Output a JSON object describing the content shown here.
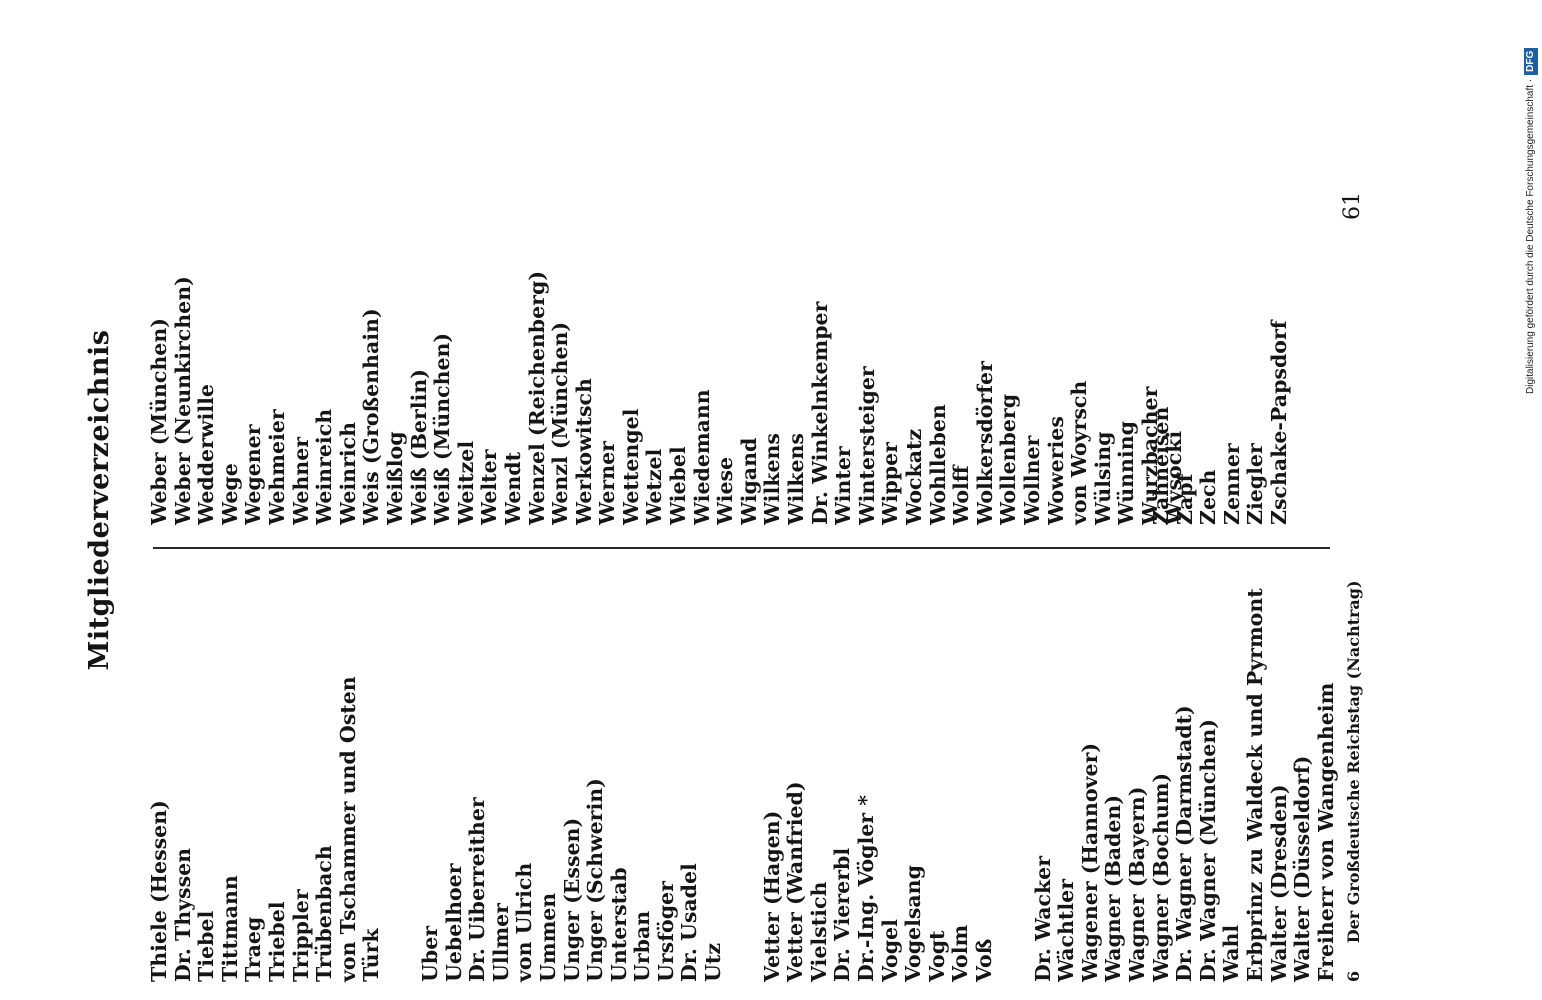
{
  "title": "Mitgliederverzeichnis",
  "left_column": [
    "Thiele (Hessen)",
    "Dr. Thyssen",
    "Tiebel",
    "Tittmann",
    "Traeg",
    "Triebel",
    "Trippler",
    "Trübenbach",
    "von Tschammer und Osten",
    "Türk",
    "",
    "Uber",
    "Uebelhoer",
    "Dr. Uiberreither",
    "Ullmer",
    "von Ulrich",
    "Ummen",
    "Unger (Essen)",
    "Unger (Schwerin)",
    "Unterstab",
    "Urban",
    "Ursföger",
    "Dr. Usadel",
    "Utz",
    "",
    "Vetter (Hagen)",
    "Vetter (Wanfried)",
    "Vielstich",
    "Dr. Viererbl",
    "Dr.-Ing. Vögler *",
    "Vogel",
    "Vogelsang",
    "Vogt",
    "Volm",
    "Voß",
    "",
    "Dr. Wacker",
    "Wächtler",
    "Wagener (Hannover)",
    "Wagner (Baden)",
    "Wagner (Bayern)",
    "Wagner (Bochum)",
    "Dr. Wagner (Darmstadt)",
    "Dr. Wagner (München)",
    "Wahl",
    "Erbprinz zu Waldeck und Pyrmont",
    "Walter (Dresden)",
    "Walter (Düsseldorf)",
    "Freiherr von Wangenheim"
  ],
  "right_column": [
    "Weber (München)",
    "Weber (Neunkirchen)",
    "Wedderwille",
    "Wege",
    "Wegener",
    "Wehmeier",
    "Wehner",
    "Weinreich",
    "Weinrich",
    "Weis (Großenhain)",
    "Weißlog",
    "Weiß (Berlin)",
    "Weiß (München)",
    "Weitzel",
    "Welter",
    "Wendt",
    "Wenzel (Reichenberg)",
    "Wenzl (München)",
    "Werkowitsch",
    "Werner",
    "Wettengel",
    "Wetzel",
    "Wiebel",
    "Wiedemann",
    "Wiese",
    "Wigand",
    "Wilkens",
    "Wilkens",
    "Dr. Winkelnkemper",
    "Winter",
    "Wintersteiger",
    "Wipper",
    "Wockatz",
    "Wohlleben",
    "Wolff",
    "Wolkersdörfer",
    "Wollenberg",
    "Wollner",
    "Woweries",
    "von Woyrsch",
    "Wülsing",
    "Wünning",
    "Wurzbacher",
    "Wysocki"
  ],
  "right_column_z": [
    "Zahneisen",
    "Zapf",
    "Zech",
    "Zenner",
    "Ziegler",
    "Zschake-Papsdorf"
  ],
  "footer": {
    "signature": "6",
    "running_title": "Der Großdeutsche Reichstag (Nachtrag)",
    "page_number": "61"
  },
  "sidebar": {
    "credit": "Digitalisierung gefördert durch die Deutsche Forschungsgemeinschaft ·",
    "logo": "DFG"
  }
}
